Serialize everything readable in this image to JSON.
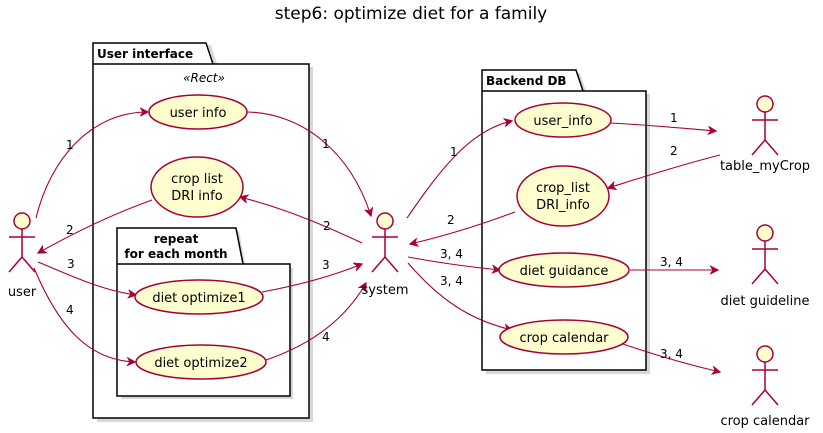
{
  "title": "step6: optimize diet for a family",
  "packages": {
    "ui": {
      "title": "User interface",
      "stereotype": "«Rect»"
    },
    "repeat": {
      "title_line1": "repeat",
      "title_line2": "for each month"
    },
    "db": {
      "title": "Backend DB"
    }
  },
  "use_cases": {
    "user_info_ui": "user info",
    "crop_list_line1": "crop list",
    "crop_list_line2": "DRI info",
    "diet_optimize1": "diet optimize1",
    "diet_optimize2": "diet optimize2",
    "user_info_db": "user_info",
    "crop_list_db_line1": "crop_list",
    "crop_list_db_line2": "DRI_info",
    "diet_guidance": "diet guidance",
    "crop_calendar_uc": "crop calendar"
  },
  "actors": {
    "user": "user",
    "system": "system",
    "table_mycrop": "table_myCrop",
    "diet_guideline": "diet guideline",
    "crop_calendar": "crop calendar"
  },
  "edge_labels": {
    "user_to_userinfo": "1",
    "userinfo_to_system": "1",
    "croplist_to_user": "2",
    "system_to_croplist": "2",
    "user_to_opt1": "3",
    "opt1_to_system": "3",
    "user_to_opt2": "4",
    "opt2_to_system": "4",
    "system_to_userinfo_db": "1",
    "userinfo_db_to_table": "1",
    "table_to_croplist_db": "2",
    "croplist_db_to_system": "2",
    "system_to_guidance": "3, 4",
    "guidance_to_guideline": "3, 4",
    "system_to_calendar_uc": "3, 4",
    "calendar_uc_to_calendar": "3, 4"
  }
}
